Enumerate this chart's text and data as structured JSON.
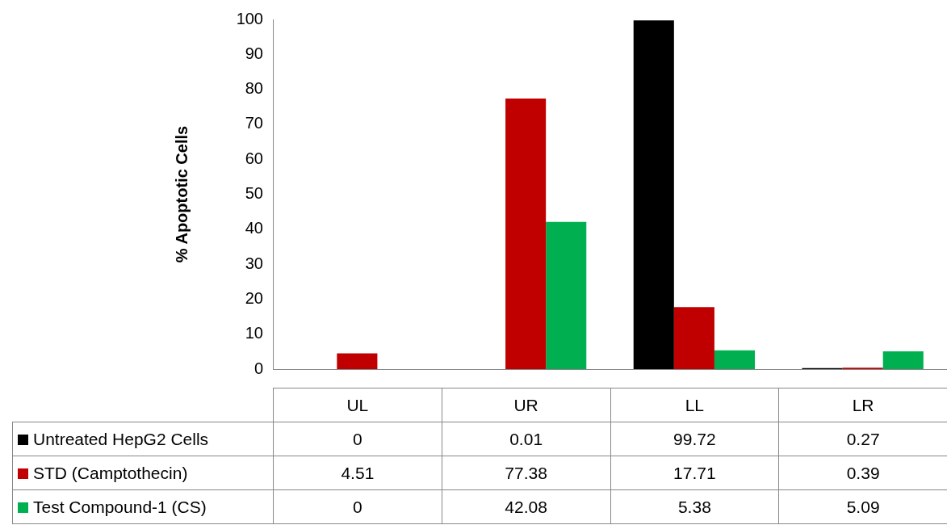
{
  "chart_data": {
    "type": "bar",
    "ylabel": "% Apoptotic Cells",
    "categories": [
      "UL",
      "UR",
      "LL",
      "LR"
    ],
    "series": [
      {
        "name": "Untreated HepG2 Cells",
        "color": "#000000",
        "values": [
          0,
          0.01,
          99.72,
          0.27
        ]
      },
      {
        "name": "STD (Camptothecin)",
        "color": "#c00000",
        "values": [
          4.51,
          77.38,
          17.71,
          0.39
        ]
      },
      {
        "name": "Test Compound-1 (CS)",
        "color": "#00b050",
        "values": [
          0,
          42.08,
          5.38,
          5.09
        ]
      }
    ],
    "ylim": [
      0,
      100
    ],
    "yticks": [
      0,
      10,
      20,
      30,
      40,
      50,
      60,
      70,
      80,
      90,
      100
    ],
    "data_labels": true,
    "legend": "bottom"
  }
}
